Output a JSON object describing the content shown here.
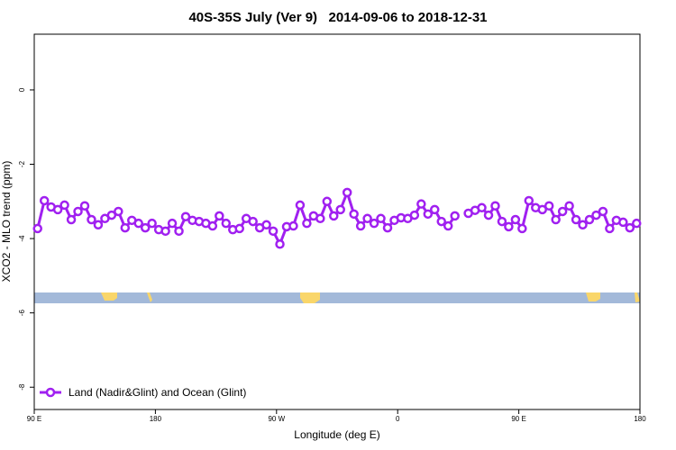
{
  "chart_data": {
    "type": "line",
    "title": "40S-35S July (Ver 9)   2014-09-06 to 2018-12-31",
    "x_label": "Longitude (deg E)",
    "y_label": "XCO2 - MLO trend (ppm)",
    "x": [
      92.5,
      97.5,
      102.5,
      107.5,
      112.5,
      117.5,
      122.5,
      127.5,
      132.5,
      137.5,
      142.5,
      147.5,
      152.5,
      157.5,
      162.5,
      167.5,
      172.5,
      177.5,
      182.5,
      187.5,
      192.5,
      197.5,
      202.5,
      207.5,
      212.5,
      217.5,
      222.5,
      227.5,
      232.5,
      237.5,
      242.5,
      247.5,
      252.5,
      257.5,
      262.5,
      267.5,
      272.5,
      277.5,
      282.5,
      287.5,
      292.5,
      297.5,
      302.5,
      307.5,
      312.5,
      317.5,
      322.5,
      327.5,
      332.5,
      337.5,
      342.5,
      347.5,
      352.5,
      357.5,
      362.5,
      367.5,
      372.5,
      377.5,
      382.5,
      387.5,
      392.5,
      397.5,
      402.5,
      407.5,
      412.5,
      417.5,
      422.5,
      427.5,
      432.5,
      437.5,
      442.5,
      447.5,
      452.5,
      457.5,
      462.5,
      467.5,
      472.5,
      477.5,
      482.5,
      487.5,
      492.5,
      497.5,
      502.5,
      507.5,
      512.5,
      517.5,
      522.5,
      527.5,
      532.5,
      537.5
    ],
    "series": [
      {
        "name": "Land (Nadir&Glint) and Ocean (Glint)",
        "color": "#a020f0",
        "values": [
          -3.73,
          -2.98,
          -3.15,
          -3.22,
          -3.1,
          -3.49,
          -3.27,
          -3.12,
          -3.49,
          -3.63,
          -3.46,
          -3.37,
          -3.27,
          -3.71,
          -3.51,
          -3.59,
          -3.71,
          -3.59,
          -3.76,
          -3.8,
          -3.59,
          -3.8,
          -3.41,
          -3.51,
          -3.54,
          -3.59,
          -3.66,
          -3.39,
          -3.59,
          -3.76,
          -3.73,
          -3.46,
          -3.54,
          -3.71,
          -3.63,
          -3.8,
          -4.15,
          -3.68,
          -3.66,
          -3.1,
          -3.59,
          -3.39,
          -3.46,
          -3.0,
          -3.39,
          -3.22,
          -2.76,
          -3.34,
          -3.66,
          -3.46,
          -3.59,
          -3.46,
          -3.71,
          -3.51,
          -3.44,
          -3.46,
          -3.37,
          -3.07,
          -3.34,
          -3.22,
          -3.54,
          -3.66,
          -3.39,
          null,
          -3.32,
          -3.24,
          -3.17,
          -3.37,
          -3.12,
          -3.54,
          -3.68,
          -3.49,
          -3.73,
          -2.98,
          -3.17,
          -3.22,
          -3.12,
          -3.49,
          -3.27,
          -3.12,
          -3.49,
          -3.63,
          -3.49,
          -3.37,
          -3.27,
          -3.73,
          -3.51,
          -3.56,
          -3.71,
          -3.59
        ]
      }
    ],
    "xlim": [
      90,
      540
    ],
    "xticks": [
      {
        "value": 90,
        "label": "90 E"
      },
      180,
      {
        "value": 270,
        "label": "90 W"
      },
      {
        "value": 360,
        "label": "0"
      },
      {
        "value": 450,
        "label": "90 E"
      },
      {
        "value": 540,
        "label": "180"
      }
    ],
    "ylim": [
      -8.6,
      1.5
    ],
    "yticks": [
      0,
      -2,
      -4,
      -6,
      -8
    ],
    "legend": "bottom-left"
  }
}
